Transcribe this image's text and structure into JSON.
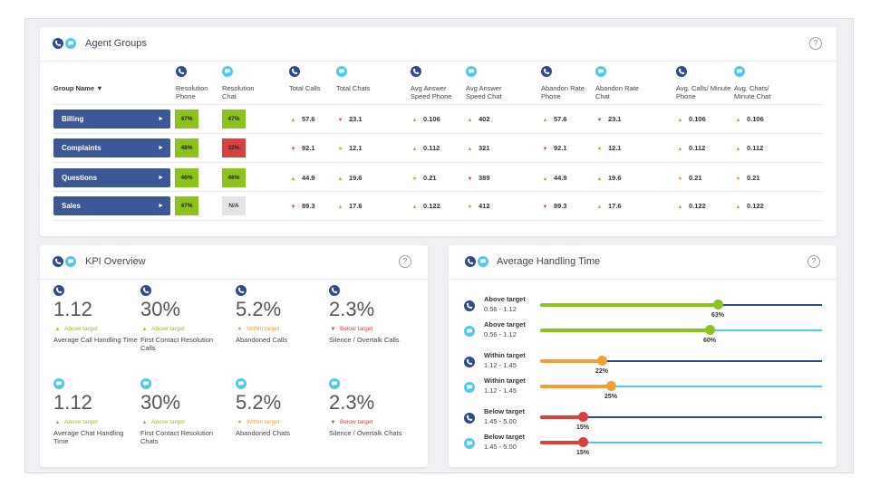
{
  "colors": {
    "phone": "#2f4a8a",
    "chat": "#4fc8ee",
    "good": "#8cc21c",
    "warn": "#f0a033",
    "bad": "#d8413e",
    "neutral": "#e4e4e4"
  },
  "agent_groups": {
    "title": "Agent Groups",
    "help": "?",
    "group_name_header": "Group Name ▼",
    "columns": [
      {
        "channel": "phone",
        "label": "Resolution Phone"
      },
      {
        "channel": "chat",
        "label": "Resolution Chat"
      },
      {
        "channel": "phone",
        "label": "Total Calls"
      },
      {
        "channel": "chat",
        "label": "Total Chats"
      },
      {
        "channel": "phone",
        "label": "Avg Answer Speed Phone"
      },
      {
        "channel": "chat",
        "label": "Avg Answer Speed Chat"
      },
      {
        "channel": "phone",
        "label": "Abandon Rate Phone"
      },
      {
        "channel": "chat",
        "label": "Abandon Rate Chat"
      },
      {
        "channel": "phone",
        "label": "Avg. Calls/ Minute Phone"
      },
      {
        "channel": "chat",
        "label": "Avg. Chats/ Minute Chat"
      }
    ],
    "rows": [
      {
        "name": "Billing",
        "arrow": "►",
        "tiles": [
          {
            "text": "47%",
            "status": "good"
          },
          {
            "text": "47%",
            "status": "good"
          }
        ],
        "metrics": [
          {
            "v": "57.6",
            "s": "up"
          },
          {
            "v": "23.1",
            "s": "down"
          },
          {
            "v": "0.106",
            "s": "up"
          },
          {
            "v": "402",
            "s": "up"
          },
          {
            "v": "57.6",
            "s": "up"
          },
          {
            "v": "23.1",
            "s": "down"
          },
          {
            "v": "0.106",
            "s": "up"
          },
          {
            "v": "0.106",
            "s": "up"
          }
        ]
      },
      {
        "name": "Complaints",
        "arrow": "►",
        "tiles": [
          {
            "text": "48%",
            "status": "good"
          },
          {
            "text": "32%",
            "status": "bad"
          }
        ],
        "metrics": [
          {
            "v": "92.1",
            "s": "down"
          },
          {
            "v": "12.1",
            "s": "mid"
          },
          {
            "v": "0.112",
            "s": "up"
          },
          {
            "v": "321",
            "s": "up"
          },
          {
            "v": "92.1",
            "s": "down"
          },
          {
            "v": "12.1",
            "s": "mid"
          },
          {
            "v": "0.112",
            "s": "up"
          },
          {
            "v": "0.112",
            "s": "up"
          }
        ]
      },
      {
        "name": "Questions",
        "arrow": "►",
        "tiles": [
          {
            "text": "46%",
            "status": "good"
          },
          {
            "text": "46%",
            "status": "good"
          }
        ],
        "metrics": [
          {
            "v": "44.9",
            "s": "up"
          },
          {
            "v": "19.6",
            "s": "up"
          },
          {
            "v": "0.21",
            "s": "mid"
          },
          {
            "v": "389",
            "s": "down"
          },
          {
            "v": "44.9",
            "s": "up"
          },
          {
            "v": "19.6",
            "s": "up"
          },
          {
            "v": "0.21",
            "s": "mid"
          },
          {
            "v": "0.21",
            "s": "mid"
          }
        ]
      },
      {
        "name": "Sales",
        "arrow": "►",
        "tiles": [
          {
            "text": "47%",
            "status": "good"
          },
          {
            "text": "N/A",
            "status": "neutral"
          }
        ],
        "metrics": [
          {
            "v": "89.3",
            "s": "down"
          },
          {
            "v": "17.6",
            "s": "up"
          },
          {
            "v": "0.122",
            "s": "up"
          },
          {
            "v": "412",
            "s": "mid"
          },
          {
            "v": "89.3",
            "s": "down"
          },
          {
            "v": "17.6",
            "s": "up"
          },
          {
            "v": "0.122",
            "s": "up"
          },
          {
            "v": "0.122",
            "s": "up"
          }
        ]
      }
    ]
  },
  "kpi_overview": {
    "title": "KPI Overview",
    "help": "?",
    "items": [
      {
        "channel": "phone",
        "value": "1.12",
        "status": "up",
        "status_text": "Above target",
        "label": "Average Call Handling Time"
      },
      {
        "channel": "phone",
        "value": "30%",
        "status": "up",
        "status_text": "Above target",
        "label": "First Contact Resolution Calls"
      },
      {
        "channel": "phone",
        "value": "5.2%",
        "status": "mid",
        "status_text": "Within target",
        "label": "Abandoned Calls"
      },
      {
        "channel": "phone",
        "value": "2.3%",
        "status": "down",
        "status_text": "Below target",
        "label": "Silence / Overtalk Calls"
      },
      {
        "channel": "chat",
        "value": "1.12",
        "status": "up",
        "status_text": "Above target",
        "label": "Average Chat Handling Time"
      },
      {
        "channel": "chat",
        "value": "30%",
        "status": "up",
        "status_text": "Above target",
        "label": "First Contact Resolution Chats"
      },
      {
        "channel": "chat",
        "value": "5.2%",
        "status": "mid",
        "status_text": "Within target",
        "label": "Abandoned Chats"
      },
      {
        "channel": "chat",
        "value": "2.3%",
        "status": "down",
        "status_text": "Below target",
        "label": "Silence / Overtalk Chats"
      }
    ]
  },
  "average_handling_time": {
    "title": "Average Handling Time",
    "help": "?",
    "rows": [
      {
        "channel": "phone",
        "label": "Above target",
        "range": "0.56 - 1.12",
        "percent": 63,
        "percent_text": "63%",
        "status": "up"
      },
      {
        "channel": "chat",
        "label": "Above target",
        "range": "0.56 - 1.12",
        "percent": 60,
        "percent_text": "60%",
        "status": "up"
      },
      {
        "channel": "phone",
        "label": "Within target",
        "range": "1.12 - 1.45",
        "percent": 22,
        "percent_text": "22%",
        "status": "mid"
      },
      {
        "channel": "chat",
        "label": "Within target",
        "range": "1.12 - 1.45",
        "percent": 25,
        "percent_text": "25%",
        "status": "mid"
      },
      {
        "channel": "phone",
        "label": "Below target",
        "range": "1.45 - 5.00",
        "percent": 15,
        "percent_text": "15%",
        "status": "down"
      },
      {
        "channel": "chat",
        "label": "Below target",
        "range": "1.45 - 5.00",
        "percent": 15,
        "percent_text": "15%",
        "status": "down"
      }
    ]
  }
}
